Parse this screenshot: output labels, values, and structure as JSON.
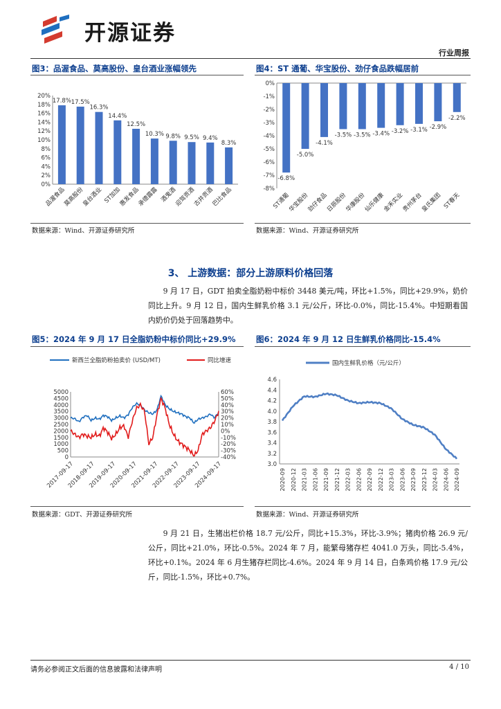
{
  "header": {
    "logo_text": "开源证券",
    "report_type": "行业周报"
  },
  "fig3": {
    "title": "图3：品渥食品、莫高股份、皇台酒业涨幅领先",
    "source": "数据来源：Wind、开源证券研究所"
  },
  "fig4": {
    "title": "图4：ST 通葡、华宝股份、劲仔食品跌幅居前",
    "source": "数据来源：Wind、开源证券研究所"
  },
  "section": {
    "title": "3、 上游数据：部分上游原料价格回落"
  },
  "para1": "9 月 17 日，GDT 拍卖全脂奶粉中标价 3448 美元/吨，环比+1.5%，同比+29.9%，奶价同比上升。9 月 12 日，国内生鲜乳价格 3.1 元/公斤，环比-0.0%，同比-15.4%。中短期看国内奶价仍处于回落趋势中。",
  "fig5": {
    "title": "图5：2024 年 9 月 17 日全脂奶粉中标价同比+29.9%",
    "source": "数据来源：GDT、开源证券研究所"
  },
  "fig6": {
    "title": "图6：2024 年 9 月 12 日生鲜乳价格同比-15.4%",
    "source": "数据来源：Wind、开源证券研究所"
  },
  "para2": "9 月 21 日，生猪出栏价格 18.7 元/公斤，同比+15.3%，环比-3.9%；猪肉价格 26.9 元/公斤，同比+21.0%，环比-0.5%。2024 年 7 月，能繁母猪存栏 4041.0 万头，同比-5.4%，环比+0.1%。2024 年 6 月生猪存栏同比-4.6%。2024 年 9 月 14 日，白条鸡价格 17.9 元/公斤，同比-1.5%，环比+0.7%。",
  "footer": {
    "disclaimer": "请务必参阅正文后面的信息披露和法律声明",
    "page": "4 / 10"
  },
  "colors": {
    "bar": "#4472c4",
    "gdt": "#1f6fbf",
    "yoy": "#e11b1b",
    "milk": "#4f7fc4",
    "title": "#0d3f8f"
  },
  "chart_data": [
    {
      "type": "bar",
      "title": "品渥食品、莫高股份、皇台酒业涨幅领先",
      "categories": [
        "品渥食品",
        "莫高股份",
        "皇台酒业",
        "ST加加",
        "惠发食品",
        "承德露露",
        "酒鬼酒",
        "迎驾贡酒",
        "古井贡酒",
        "巴比食品"
      ],
      "values": [
        17.8,
        17.5,
        16.3,
        14.4,
        12.5,
        10.3,
        9.8,
        9.5,
        9.4,
        8.3
      ],
      "labels": [
        "17.8%",
        "17.5%",
        "16.3%",
        "14.4%",
        "12.5%",
        "10.3%",
        "9.8%",
        "9.5%",
        "9.4%",
        "8.3%"
      ],
      "yticks": [
        "20%",
        "18%",
        "16%",
        "14%",
        "12%",
        "10%",
        "8%",
        "6%",
        "4%",
        "2%",
        "0%"
      ],
      "ylim": [
        0,
        20
      ]
    },
    {
      "type": "bar",
      "title": "ST 通葡、华宝股份、劲仔食品跌幅居前",
      "categories": [
        "ST通葡",
        "华宝股份",
        "劲仔食品",
        "日辰股份",
        "华康股份",
        "仙乐健康",
        "金禾实业",
        "贵州茅台",
        "皇氏集团",
        "ST春天"
      ],
      "values": [
        -6.8,
        -5.0,
        -4.1,
        -3.5,
        -3.5,
        -3.4,
        -3.2,
        -3.1,
        -2.9,
        -2.2
      ],
      "labels": [
        "-6.8%",
        "-5.0%",
        "-4.1%",
        "-3.5%",
        "-3.5%",
        "-3.4%",
        "-3.2%",
        "-3.1%",
        "-2.9%",
        "-2.2%"
      ],
      "yticks": [
        "0%",
        "-1%",
        "-2%",
        "-3%",
        "-4%",
        "-5%",
        "-6%",
        "-7%",
        "-8%"
      ],
      "ylim": [
        -8,
        0
      ]
    },
    {
      "type": "line",
      "title": "2024 年 9 月 17 日全脂奶粉中标价同比+29.9%",
      "series": [
        {
          "name": "新西兰全脂奶粉拍卖价 (USD/MT)",
          "axis": "left"
        },
        {
          "name": "同比增速",
          "axis": "right"
        }
      ],
      "x": [
        "2017-09-17",
        "2018-09-17",
        "2019-09-17",
        "2020-09-17",
        "2021-09-17",
        "2022-09-17",
        "2023-09-17",
        "2024-09-17"
      ],
      "gdt_anchors": [
        3000,
        2950,
        2700,
        3050,
        3200,
        2800,
        3000,
        2900,
        3200,
        3100,
        2800,
        3000,
        3150,
        3000,
        3250,
        3800,
        4100,
        4000,
        3600,
        3400,
        3300,
        3600,
        4700,
        4000,
        3700,
        3500,
        3400,
        3300,
        3100,
        3000,
        2600,
        2900,
        3000,
        3100,
        3300,
        3000,
        3448
      ],
      "yoy_anchors": [
        0,
        -5,
        -10,
        -5,
        -8,
        -10,
        -5,
        -8,
        5,
        -2,
        -12,
        -5,
        5,
        8,
        -10,
        15,
        35,
        40,
        30,
        -20,
        -10,
        25,
        50,
        35,
        10,
        -5,
        -15,
        -20,
        -25,
        -30,
        -38,
        -30,
        -5,
        0,
        5,
        15,
        29.9
      ],
      "yticks_left": [
        "5000",
        "4500",
        "4000",
        "3500",
        "3000",
        "2500",
        "2000",
        "1500",
        "1000",
        "500",
        "0"
      ],
      "ylim_left": [
        0,
        5000
      ],
      "yticks_right": [
        "60%",
        "50%",
        "40%",
        "30%",
        "20%",
        "10%",
        "0%",
        "-10%",
        "-20%",
        "-30%",
        "-40%"
      ],
      "ylim_right": [
        -40,
        60
      ]
    },
    {
      "type": "line",
      "title": "2024 年 9 月 12 日生鲜乳价格同比-15.4%",
      "series": [
        {
          "name": "国内生鲜乳价格（元/公斤）"
        }
      ],
      "x": [
        "2020-09",
        "2020-12",
        "2021-03",
        "2021-06",
        "2021-09",
        "2021-12",
        "2022-03",
        "2022-06",
        "2022-09",
        "2022-12",
        "2023-03",
        "2023-06",
        "2023-09",
        "2023-12",
        "2024-03",
        "2024-06",
        "2024-09"
      ],
      "anchors": [
        3.82,
        4.1,
        4.28,
        4.27,
        4.33,
        4.3,
        4.2,
        4.15,
        4.17,
        4.15,
        4.05,
        3.85,
        3.74,
        3.69,
        3.55,
        3.28,
        3.1
      ],
      "yticks": [
        "4.6",
        "4.4",
        "4.2",
        "4.0",
        "3.8",
        "3.6",
        "3.4",
        "3.2",
        "3.0"
      ],
      "ylim": [
        3.0,
        4.6
      ]
    }
  ]
}
